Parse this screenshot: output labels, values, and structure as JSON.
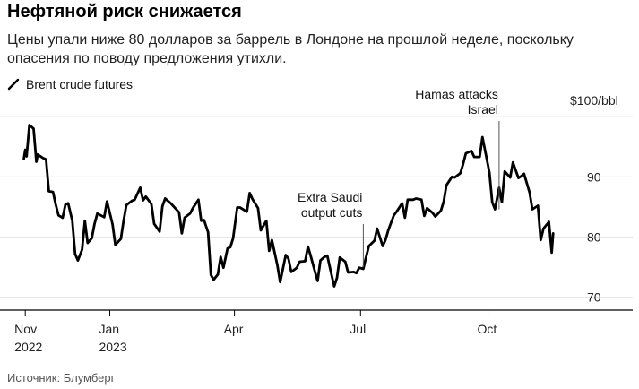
{
  "title": "Нефтяной риск снижается",
  "subtitle": "Цены упали ниже 80 долларов за баррель в Лондоне на прошлой неделе, поскольку опасения по поводу предложения утихли.",
  "legend_label": "Brent crude futures",
  "source": "Источник: Блумберг",
  "colors": {
    "line": "#000000",
    "grid": "#e2e2e2",
    "axis": "#000000",
    "annotation": "#555555"
  },
  "chart_data": {
    "type": "line",
    "unit_label": "$100/bbl",
    "ylim": [
      68,
      103
    ],
    "xlim": [
      "2022-10-28",
      "2023-11-24"
    ],
    "y_ticks": [
      70,
      80,
      90,
      100
    ],
    "y_tick_labels": [
      "70",
      "80",
      "90",
      ""
    ],
    "grid": true,
    "x_ticks": [
      {
        "date": "2022-11-01",
        "label": "Nov",
        "sublabel": "2022"
      },
      {
        "date": "2023-01-01",
        "label": "Jan",
        "sublabel": "2023"
      },
      {
        "date": "2023-04-01",
        "label": "Apr",
        "sublabel": ""
      },
      {
        "date": "2023-07-01",
        "label": "Jul",
        "sublabel": ""
      },
      {
        "date": "2023-10-01",
        "label": "Oct",
        "sublabel": ""
      }
    ],
    "annotations": [
      {
        "date": "2023-07-03",
        "value": 75,
        "lines": [
          "Extra Saudi",
          "output cuts"
        ]
      },
      {
        "date": "2023-10-09",
        "value": 84.6,
        "lines": [
          "Hamas attacks",
          "Israel"
        ]
      }
    ],
    "series": [
      {
        "points": [
          [
            "2022-10-31",
            93.0
          ],
          [
            "2022-11-01",
            94.5
          ],
          [
            "2022-11-02",
            93.4
          ],
          [
            "2022-11-04",
            98.6
          ],
          [
            "2022-11-07",
            98.0
          ],
          [
            "2022-11-09",
            92.5
          ],
          [
            "2022-11-10",
            93.7
          ],
          [
            "2022-11-14",
            93.1
          ],
          [
            "2022-11-16",
            92.9
          ],
          [
            "2022-11-18",
            87.6
          ],
          [
            "2022-11-21",
            87.5
          ],
          [
            "2022-11-23",
            85.4
          ],
          [
            "2022-11-25",
            83.6
          ],
          [
            "2022-11-28",
            83.2
          ],
          [
            "2022-11-30",
            85.4
          ],
          [
            "2022-12-02",
            85.6
          ],
          [
            "2022-12-05",
            82.7
          ],
          [
            "2022-12-07",
            77.2
          ],
          [
            "2022-12-09",
            76.1
          ],
          [
            "2022-12-12",
            77.9
          ],
          [
            "2022-12-14",
            82.7
          ],
          [
            "2022-12-16",
            79.0
          ],
          [
            "2022-12-19",
            79.8
          ],
          [
            "2022-12-21",
            82.2
          ],
          [
            "2022-12-23",
            83.9
          ],
          [
            "2022-12-28",
            83.3
          ],
          [
            "2022-12-30",
            85.9
          ],
          [
            "2023-01-03",
            82.1
          ],
          [
            "2023-01-05",
            78.7
          ],
          [
            "2023-01-09",
            79.7
          ],
          [
            "2023-01-11",
            82.7
          ],
          [
            "2023-01-13",
            85.3
          ],
          [
            "2023-01-17",
            86.0
          ],
          [
            "2023-01-19",
            86.2
          ],
          [
            "2023-01-23",
            88.2
          ],
          [
            "2023-01-25",
            86.1
          ],
          [
            "2023-01-27",
            86.7
          ],
          [
            "2023-01-31",
            85.5
          ],
          [
            "2023-02-02",
            82.2
          ],
          [
            "2023-02-06",
            80.9
          ],
          [
            "2023-02-08",
            85.1
          ],
          [
            "2023-02-10",
            86.4
          ],
          [
            "2023-02-14",
            85.6
          ],
          [
            "2023-02-16",
            85.1
          ],
          [
            "2023-02-20",
            84.1
          ],
          [
            "2023-02-22",
            80.6
          ],
          [
            "2023-02-24",
            83.2
          ],
          [
            "2023-02-28",
            83.9
          ],
          [
            "2023-03-02",
            84.8
          ],
          [
            "2023-03-06",
            86.2
          ],
          [
            "2023-03-08",
            82.7
          ],
          [
            "2023-03-10",
            82.8
          ],
          [
            "2023-03-13",
            80.8
          ],
          [
            "2023-03-15",
            73.7
          ],
          [
            "2023-03-17",
            72.9
          ],
          [
            "2023-03-20",
            73.8
          ],
          [
            "2023-03-22",
            76.7
          ],
          [
            "2023-03-24",
            74.9
          ],
          [
            "2023-03-27",
            78.1
          ],
          [
            "2023-03-29",
            78.3
          ],
          [
            "2023-03-31",
            79.8
          ],
          [
            "2023-04-03",
            84.9
          ],
          [
            "2023-04-05",
            84.9
          ],
          [
            "2023-04-10",
            84.2
          ],
          [
            "2023-04-12",
            87.3
          ],
          [
            "2023-04-14",
            86.3
          ],
          [
            "2023-04-18",
            84.8
          ],
          [
            "2023-04-20",
            81.1
          ],
          [
            "2023-04-24",
            82.7
          ],
          [
            "2023-04-26",
            77.7
          ],
          [
            "2023-04-28",
            79.5
          ],
          [
            "2023-05-02",
            75.3
          ],
          [
            "2023-05-04",
            72.5
          ],
          [
            "2023-05-08",
            77.0
          ],
          [
            "2023-05-10",
            76.4
          ],
          [
            "2023-05-12",
            74.2
          ],
          [
            "2023-05-16",
            74.9
          ],
          [
            "2023-05-18",
            75.9
          ],
          [
            "2023-05-22",
            75.99
          ],
          [
            "2023-05-24",
            78.4
          ],
          [
            "2023-05-26",
            76.9
          ],
          [
            "2023-05-30",
            73.5
          ],
          [
            "2023-05-31",
            72.7
          ],
          [
            "2023-06-02",
            76.1
          ],
          [
            "2023-06-05",
            76.7
          ],
          [
            "2023-06-07",
            76.9
          ],
          [
            "2023-06-09",
            74.8
          ],
          [
            "2023-06-12",
            71.8
          ],
          [
            "2023-06-14",
            73.2
          ],
          [
            "2023-06-16",
            76.6
          ],
          [
            "2023-06-20",
            75.9
          ],
          [
            "2023-06-22",
            74.1
          ],
          [
            "2023-06-26",
            74.2
          ],
          [
            "2023-06-28",
            74.0
          ],
          [
            "2023-06-30",
            74.9
          ],
          [
            "2023-07-03",
            74.7
          ],
          [
            "2023-07-05",
            76.7
          ],
          [
            "2023-07-07",
            78.5
          ],
          [
            "2023-07-11",
            79.4
          ],
          [
            "2023-07-13",
            81.4
          ],
          [
            "2023-07-17",
            78.5
          ],
          [
            "2023-07-19",
            79.5
          ],
          [
            "2023-07-21",
            81.1
          ],
          [
            "2023-07-25",
            83.6
          ],
          [
            "2023-07-27",
            84.2
          ],
          [
            "2023-07-31",
            85.6
          ],
          [
            "2023-08-02",
            83.2
          ],
          [
            "2023-08-04",
            86.2
          ],
          [
            "2023-08-08",
            86.2
          ],
          [
            "2023-08-10",
            86.4
          ],
          [
            "2023-08-14",
            86.2
          ],
          [
            "2023-08-16",
            83.5
          ],
          [
            "2023-08-18",
            84.8
          ],
          [
            "2023-08-22",
            84.0
          ],
          [
            "2023-08-24",
            83.4
          ],
          [
            "2023-08-28",
            84.4
          ],
          [
            "2023-08-30",
            85.9
          ],
          [
            "2023-09-01",
            88.6
          ],
          [
            "2023-09-05",
            90.0
          ],
          [
            "2023-09-07",
            89.9
          ],
          [
            "2023-09-11",
            90.6
          ],
          [
            "2023-09-13",
            92.1
          ],
          [
            "2023-09-15",
            93.9
          ],
          [
            "2023-09-19",
            94.3
          ],
          [
            "2023-09-21",
            93.3
          ],
          [
            "2023-09-25",
            93.3
          ],
          [
            "2023-09-27",
            96.6
          ],
          [
            "2023-09-28",
            95.4
          ],
          [
            "2023-10-02",
            90.7
          ],
          [
            "2023-10-04",
            85.8
          ],
          [
            "2023-10-06",
            84.6
          ],
          [
            "2023-10-09",
            88.2
          ],
          [
            "2023-10-11",
            85.8
          ],
          [
            "2023-10-13",
            90.9
          ],
          [
            "2023-10-17",
            89.9
          ],
          [
            "2023-10-19",
            92.4
          ],
          [
            "2023-10-23",
            89.8
          ],
          [
            "2023-10-25",
            90.1
          ],
          [
            "2023-10-27",
            90.5
          ],
          [
            "2023-10-31",
            87.4
          ],
          [
            "2023-11-02",
            84.6
          ],
          [
            "2023-11-06",
            85.2
          ],
          [
            "2023-11-08",
            79.5
          ],
          [
            "2023-11-10",
            81.4
          ],
          [
            "2023-11-14",
            82.5
          ],
          [
            "2023-11-16",
            77.4
          ],
          [
            "2023-11-17",
            80.6
          ]
        ]
      }
    ]
  }
}
